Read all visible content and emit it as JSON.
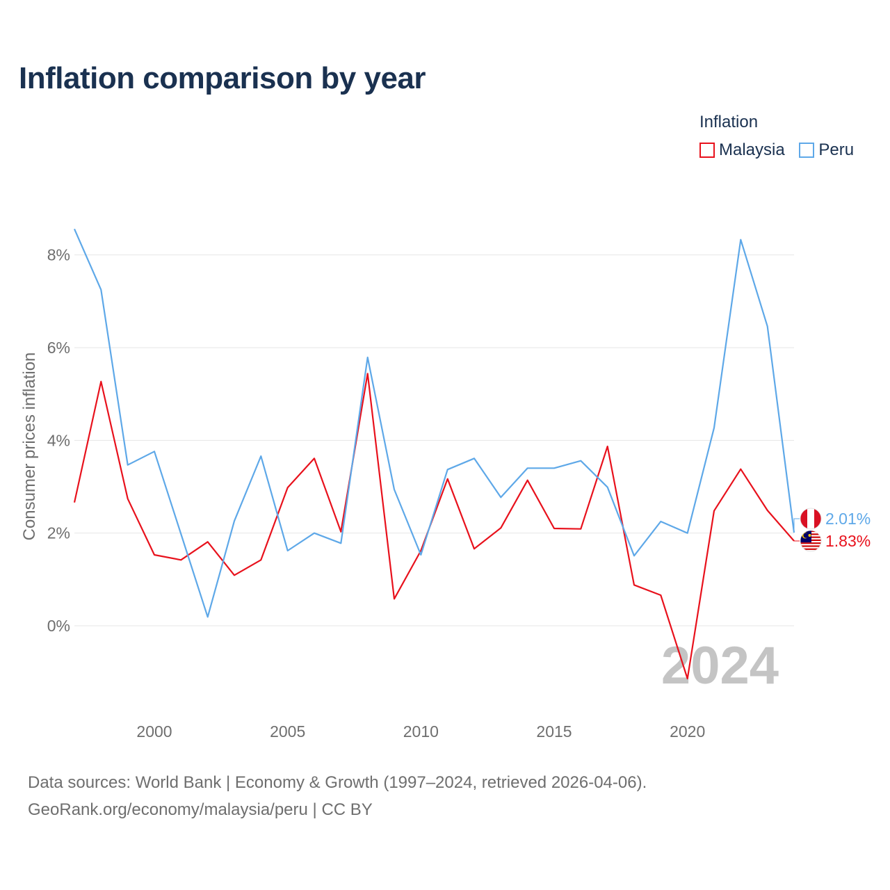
{
  "chart_data": {
    "type": "line",
    "title": "Inflation comparison by year",
    "legend_title": "Inflation",
    "ylabel": "Consumer prices inflation",
    "xlabel": "",
    "xlim": [
      1997,
      2024
    ],
    "ylim": [
      -1.8,
      9.0
    ],
    "x_ticks": [
      2000,
      2005,
      2010,
      2015,
      2020
    ],
    "y_ticks": [
      0,
      2,
      4,
      6,
      8
    ],
    "y_tick_labels": [
      "0%",
      "2%",
      "4%",
      "6%",
      "8%"
    ],
    "grid": true,
    "legend_position": "top-right",
    "year_watermark": "2024",
    "x": [
      1997,
      1998,
      1999,
      2000,
      2001,
      2002,
      2003,
      2004,
      2005,
      2006,
      2007,
      2008,
      2009,
      2010,
      2011,
      2012,
      2013,
      2014,
      2015,
      2016,
      2017,
      2018,
      2019,
      2020,
      2021,
      2022,
      2023,
      2024
    ],
    "series": [
      {
        "name": "Malaysia",
        "color": "#e8111c",
        "flag": "malaysia-flag",
        "end_label": "1.83%",
        "values": [
          2.66,
          5.27,
          2.74,
          1.53,
          1.42,
          1.81,
          1.09,
          1.42,
          2.98,
          3.61,
          2.03,
          5.44,
          0.58,
          1.62,
          3.17,
          1.66,
          2.11,
          3.14,
          2.1,
          2.09,
          3.87,
          0.88,
          0.66,
          -1.14,
          2.48,
          3.38,
          2.49,
          1.83
        ]
      },
      {
        "name": "Peru",
        "color": "#5ea8e8",
        "flag": "peru-flag",
        "end_label": "2.01%",
        "values": [
          8.56,
          7.25,
          3.47,
          3.76,
          1.98,
          0.19,
          2.26,
          3.66,
          1.62,
          2.0,
          1.78,
          5.79,
          2.94,
          1.53,
          3.37,
          3.61,
          2.77,
          3.4,
          3.4,
          3.56,
          2.99,
          1.51,
          2.25,
          2.0,
          4.27,
          8.33,
          6.46,
          2.01
        ]
      }
    ]
  },
  "source": {
    "line1": "Data sources: World Bank | Economy & Growth (1997–2024, retrieved 2026-04-06).",
    "line2": "GeoRank.org/economy/malaysia/peru | CC BY"
  }
}
